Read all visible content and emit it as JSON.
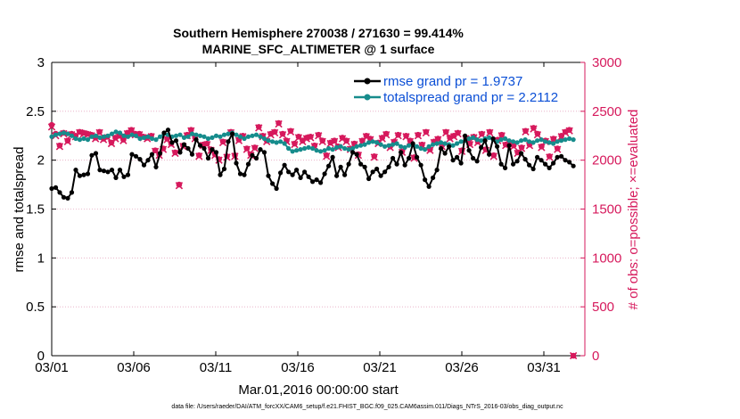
{
  "chart_data": {
    "type": "line",
    "title_line1": "Southern Hemisphere 270038 / 271630 = 99.414%",
    "title_line2": "MARINE_SFC_ALTIMETER @ 1 surface",
    "xlabel": "Mar.01,2016 00:00:00 start",
    "ylabel_left": "rmse and totalspread",
    "ylabel_right": "# of obs: o=possible; ×=evaluated",
    "footer": "data file: /Users/raeder/DAI/ATM_forcXX/CAM6_setup/f.e21.FHIST_BGC.f09_025.CAM6assim.011/Diags_NTrS_2016-03/obs_diag_output.nc",
    "xlim": [
      0,
      32.5
    ],
    "ylim_left": [
      0,
      3
    ],
    "ylim_right": [
      0,
      3000
    ],
    "x_ticks": [
      0,
      5,
      10,
      15,
      20,
      25,
      30
    ],
    "x_tick_labels": [
      "03/01",
      "03/06",
      "03/11",
      "03/16",
      "03/21",
      "03/26",
      "03/31"
    ],
    "y_ticks_left": [
      0,
      0.5,
      1,
      1.5,
      2,
      2.5,
      3
    ],
    "y_tick_labels_left": [
      "0",
      "0.5",
      "1",
      "1.5",
      "2",
      "2.5",
      "3"
    ],
    "y_ticks_right": [
      0,
      500,
      1000,
      1500,
      2000,
      2500,
      3000
    ],
    "y_tick_labels_right": [
      "0",
      "500",
      "1000",
      "1500",
      "2000",
      "2500",
      "3000"
    ],
    "right_axis_color": "#d6195c",
    "series": [
      {
        "name": "rmse grand pr = 1.9737",
        "color": "#000000",
        "axis": "left",
        "values": [
          1.71,
          1.72,
          1.67,
          1.62,
          1.61,
          1.67,
          1.9,
          1.84,
          1.85,
          1.86,
          2.05,
          2.07,
          1.9,
          1.89,
          1.88,
          1.9,
          1.82,
          1.9,
          1.83,
          1.85,
          2.06,
          2.04,
          2.01,
          1.95,
          2.0,
          2.06,
          1.93,
          2.07,
          2.28,
          2.31,
          2.18,
          2.2,
          2.08,
          2.16,
          2.12,
          2.06,
          2.21,
          2.15,
          2.12,
          2.02,
          2.11,
          2.08,
          1.85,
          1.91,
          2.19,
          2.27,
          1.97,
          1.86,
          1.85,
          1.96,
          2.05,
          2.02,
          2.11,
          2.08,
          1.84,
          1.76,
          1.71,
          1.87,
          1.95,
          1.88,
          1.85,
          1.9,
          1.82,
          1.88,
          1.83,
          1.78,
          1.8,
          1.77,
          1.86,
          1.94,
          2.03,
          1.84,
          1.93,
          1.85,
          1.96,
          2.08,
          2.06,
          1.96,
          1.93,
          1.81,
          1.88,
          1.91,
          1.84,
          1.88,
          1.93,
          2.02,
          1.96,
          2.08,
          1.95,
          2.02,
          2.17,
          2.03,
          1.95,
          1.8,
          1.73,
          1.82,
          1.9,
          2.12,
          2.07,
          2.14,
          2.0,
          2.03,
          1.97,
          2.25,
          2.1,
          2.02,
          1.99,
          2.13,
          2.2,
          2.06,
          2.22,
          2.14,
          1.96,
          1.92,
          2.15,
          1.96,
          1.99,
          2.07,
          2.01,
          1.95,
          1.91,
          2.03,
          2.0,
          1.96,
          1.92,
          1.97,
          2.03,
          2.04,
          2.0,
          1.98,
          1.94
        ]
      },
      {
        "name": "totalspread grand pr = 2.2112",
        "color": "#168c8c",
        "axis": "left",
        "values": [
          2.24,
          2.26,
          2.27,
          2.28,
          2.27,
          2.25,
          2.22,
          2.21,
          2.22,
          2.21,
          2.24,
          2.25,
          2.23,
          2.24,
          2.25,
          2.27,
          2.29,
          2.28,
          2.25,
          2.24,
          2.26,
          2.25,
          2.22,
          2.23,
          2.24,
          2.22,
          2.21,
          2.24,
          2.27,
          2.26,
          2.24,
          2.25,
          2.26,
          2.23,
          2.24,
          2.27,
          2.26,
          2.25,
          2.24,
          2.22,
          2.23,
          2.25,
          2.24,
          2.26,
          2.27,
          2.28,
          2.26,
          2.24,
          2.22,
          2.24,
          2.25,
          2.26,
          2.24,
          2.22,
          2.2,
          2.19,
          2.18,
          2.19,
          2.17,
          2.12,
          2.09,
          2.1,
          2.11,
          2.12,
          2.13,
          2.12,
          2.1,
          2.09,
          2.1,
          2.12,
          2.11,
          2.13,
          2.14,
          2.12,
          2.11,
          2.12,
          2.14,
          2.15,
          2.16,
          2.18,
          2.19,
          2.18,
          2.16,
          2.14,
          2.15,
          2.16,
          2.17,
          2.14,
          2.13,
          2.15,
          2.16,
          2.14,
          2.12,
          2.11,
          2.14,
          2.16,
          2.17,
          2.18,
          2.17,
          2.16,
          2.15,
          2.17,
          2.19,
          2.2,
          2.22,
          2.23,
          2.21,
          2.2,
          2.22,
          2.23,
          2.21,
          2.19,
          2.21,
          2.22,
          2.2,
          2.19,
          2.18,
          2.2,
          2.21,
          2.19,
          2.18,
          2.2,
          2.21,
          2.19,
          2.18,
          2.17,
          2.19,
          2.2,
          2.21,
          2.22,
          2.21
        ]
      },
      {
        "name": "# obs possible",
        "color": "#d6195c",
        "axis": "right",
        "marker": "o",
        "values": [
          2360,
          2270,
          2150,
          2280,
          2200,
          2270,
          2250,
          2290,
          2280,
          2270,
          2260,
          2230,
          2290,
          2220,
          2240,
          2180,
          2230,
          2250,
          2210,
          2280,
          2310,
          2270,
          2270,
          2240,
          2230,
          2250,
          2100,
          2060,
          2120,
          2220,
          2170,
          2080,
          1750,
          2150,
          2260,
          2310,
          2230,
          2050,
          2160,
          2170,
          2110,
          2060,
          2010,
          2190,
          2040,
          2290,
          2050,
          2210,
          2250,
          2120,
          2060,
          2130,
          2340,
          2250,
          2200,
          2270,
          2290,
          2380,
          2270,
          2200,
          2300,
          2170,
          2240,
          2200,
          2230,
          2240,
          2150,
          2260,
          2200,
          2050,
          2180,
          2200,
          2140,
          2230,
          2200,
          2120,
          2170,
          2060,
          2200,
          2250,
          2220,
          2040,
          2180,
          2230,
          2270,
          2140,
          2190,
          2260,
          2090,
          2250,
          2200,
          2030,
          2260,
          2160,
          2290,
          2110,
          2190,
          2220,
          2150,
          2290,
          2230,
          2250,
          2280,
          2100,
          2230,
          2170,
          2240,
          2190,
          2270,
          2110,
          2290,
          2050,
          2210,
          2260,
          2160,
          2180,
          2150,
          2080,
          2130,
          2300,
          2160,
          2330,
          2270,
          2140,
          2200,
          2040,
          2220,
          2120,
          2250,
          2290,
          2310,
          0
        ]
      },
      {
        "name": "# obs evaluated",
        "color": "#d6195c",
        "axis": "right",
        "marker": "x",
        "values": [
          2340,
          2250,
          2140,
          2270,
          2190,
          2260,
          2240,
          2280,
          2270,
          2260,
          2250,
          2220,
          2280,
          2210,
          2230,
          2170,
          2220,
          2240,
          2200,
          2270,
          2300,
          2260,
          2260,
          2230,
          2220,
          2240,
          2090,
          2050,
          2110,
          2210,
          2160,
          2070,
          1740,
          2140,
          2250,
          2300,
          2220,
          2040,
          2150,
          2160,
          2100,
          2050,
          2000,
          2180,
          2030,
          2280,
          2040,
          2200,
          2240,
          2110,
          2050,
          2120,
          2330,
          2240,
          2190,
          2260,
          2280,
          2370,
          2260,
          2190,
          2290,
          2160,
          2230,
          2190,
          2220,
          2230,
          2140,
          2250,
          2190,
          2040,
          2170,
          2190,
          2130,
          2220,
          2190,
          2110,
          2160,
          2050,
          2190,
          2240,
          2210,
          2030,
          2170,
          2220,
          2260,
          2130,
          2180,
          2250,
          2080,
          2240,
          2190,
          2020,
          2250,
          2150,
          2280,
          2100,
          2180,
          2210,
          2140,
          2280,
          2220,
          2240,
          2270,
          2090,
          2220,
          2160,
          2230,
          2180,
          2260,
          2100,
          2280,
          2040,
          2200,
          2250,
          2150,
          2170,
          2140,
          2070,
          2120,
          2290,
          2150,
          2320,
          2260,
          2130,
          2190,
          2030,
          2210,
          2110,
          2240,
          2280,
          2300,
          0
        ]
      }
    ]
  }
}
